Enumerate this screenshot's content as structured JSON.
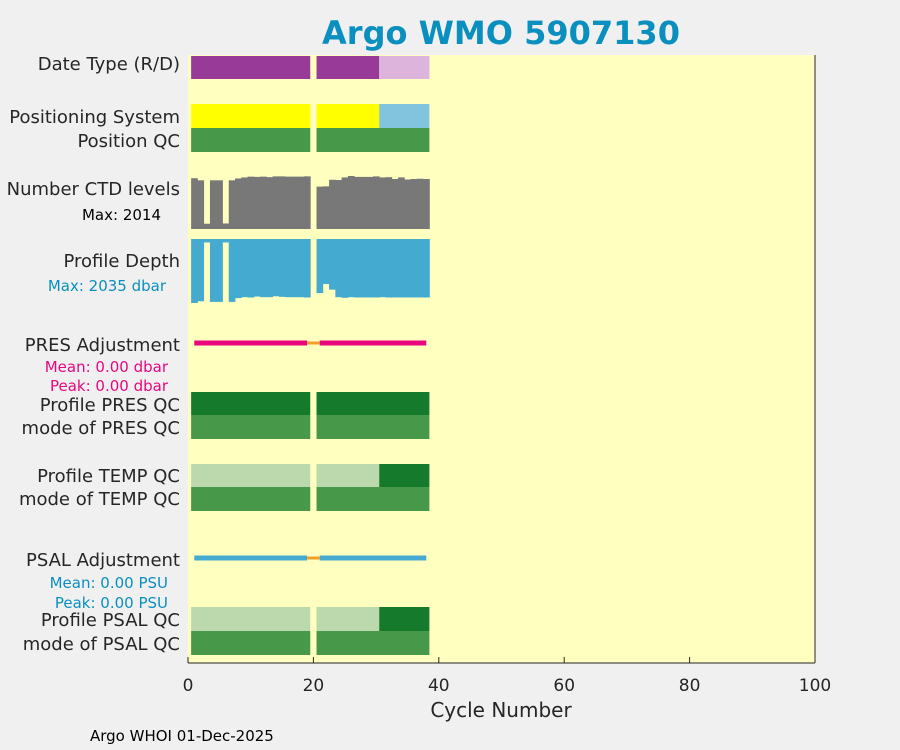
{
  "colors": {
    "background": "#f0f0f0",
    "plot_background": "#ffffc0",
    "title": "#0a8fbf",
    "purple_dark": "#983a98",
    "purple_light": "#dcb4dc",
    "yellow": "#ffff00",
    "light_blue": "#82c4de",
    "qc_green": "#48984a",
    "qc_dark_green": "#157a2c",
    "qc_light_green": "#bcd9ae",
    "ctd_gray": "#787878",
    "depth_blue": "#44aad0",
    "pres_magenta": "#e8067f",
    "psal_cyan": "#44aad0",
    "gap_orange": "#f0a028",
    "stat_blue": "#0a8fbf",
    "stat_magenta": "#e8067f"
  },
  "chart_data": {
    "type": "bar",
    "title": "Argo WMO 5907130",
    "xlabel": "Cycle Number",
    "xlim": [
      0,
      100
    ],
    "xticks": [
      0,
      20,
      40,
      60,
      80,
      100
    ],
    "cycles": {
      "first": 1,
      "last": 38,
      "missing": [
        20
      ]
    },
    "labels": {
      "date_type": "Date Type (R/D)",
      "positioning_system": "Positioning System",
      "position_qc": "Position QC",
      "ctd_levels": "Number CTD levels",
      "ctd_max": "Max: 2014",
      "profile_depth": "Profile Depth",
      "depth_max": "Max: 2035 dbar",
      "pres_adjustment": "PRES Adjustment",
      "pres_mean": "Mean: 0.00 dbar",
      "pres_peak": "Peak: 0.00 dbar",
      "profile_pres_qc": "Profile PRES QC",
      "mode_pres_qc": "mode of PRES QC",
      "profile_temp_qc": "Profile TEMP QC",
      "mode_temp_qc": "mode of TEMP QC",
      "psal_adjustment": "PSAL Adjustment",
      "psal_mean": "Mean: 0.00 PSU",
      "psal_peak": "Peak: 0.00 PSU",
      "profile_psal_qc": "Profile PSAL QC",
      "mode_psal_qc": "mode of PSAL QC"
    },
    "segments": {
      "date_type": [
        {
          "from": 1,
          "to": 30,
          "color": "purple_dark"
        },
        {
          "from": 31,
          "to": 38,
          "color": "purple_light"
        }
      ],
      "positioning_system": [
        {
          "from": 1,
          "to": 30,
          "color": "yellow"
        },
        {
          "from": 31,
          "to": 38,
          "color": "light_blue"
        }
      ],
      "position_qc": [
        {
          "from": 1,
          "to": 38,
          "color": "qc_green"
        }
      ],
      "profile_pres_qc": [
        {
          "from": 1,
          "to": 38,
          "color": "qc_dark_green"
        }
      ],
      "mode_pres_qc": [
        {
          "from": 1,
          "to": 38,
          "color": "qc_green"
        }
      ],
      "profile_temp_qc": [
        {
          "from": 1,
          "to": 30,
          "color": "qc_light_green"
        },
        {
          "from": 31,
          "to": 38,
          "color": "qc_dark_green"
        }
      ],
      "mode_temp_qc": [
        {
          "from": 1,
          "to": 38,
          "color": "qc_green"
        }
      ],
      "profile_psal_qc": [
        {
          "from": 1,
          "to": 30,
          "color": "qc_light_green"
        },
        {
          "from": 31,
          "to": 38,
          "color": "qc_dark_green"
        }
      ],
      "mode_psal_qc": [
        {
          "from": 1,
          "to": 38,
          "color": "qc_green"
        }
      ]
    },
    "ctd_levels": {
      "max": 2014,
      "values": [
        1930,
        1850,
        200,
        1850,
        1850,
        210,
        1850,
        1920,
        1960,
        1990,
        1980,
        1990,
        1970,
        2000,
        2000,
        1990,
        1990,
        1990,
        2000,
        null,
        1610,
        1620,
        1870,
        1860,
        1960,
        2014,
        1980,
        1980,
        1980,
        2000,
        1960,
        1970,
        1900,
        1960,
        1880,
        1900,
        1910,
        1900
      ]
    },
    "profile_depth": {
      "max": 2035,
      "values": [
        2035,
        1980,
        110,
        2000,
        2000,
        110,
        2000,
        1880,
        1850,
        1860,
        1830,
        1850,
        1850,
        1820,
        1840,
        1850,
        1850,
        1850,
        1860,
        null,
        1720,
        1430,
        1610,
        1850,
        1870,
        1850,
        1860,
        1860,
        1860,
        1860,
        1850,
        1860,
        1860,
        1860,
        1860,
        1860,
        1860,
        1860
      ]
    },
    "pres_adjustment": {
      "mean": 0.0,
      "peak": 0.0,
      "units": "dbar"
    },
    "psal_adjustment": {
      "mean": 0.0,
      "peak": 0.0,
      "units": "PSU"
    }
  },
  "footer": "Argo WHOI 01-Dec-2025"
}
